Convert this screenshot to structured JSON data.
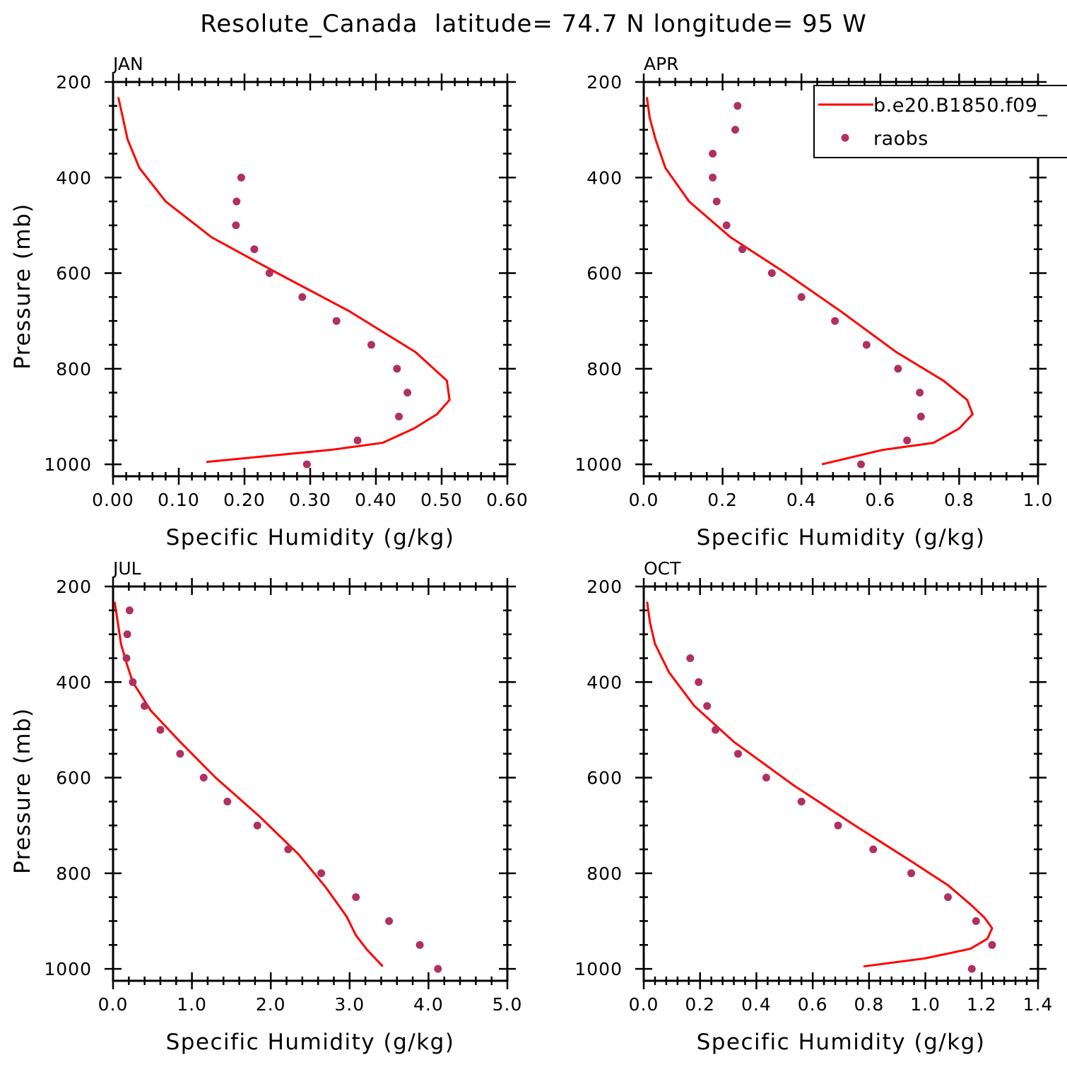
{
  "title": "Resolute_Canada  latitude= 74.7 N longitude= 95 W",
  "colors": {
    "model": "#ff0000",
    "obs": "#b03060"
  },
  "legend": {
    "placement": "top-right of APR panel, clipped at figure edge",
    "model_label": "b.e20.B1850.f09_",
    "obs_label": "raobs"
  },
  "chart_data": [
    {
      "type": "line",
      "panel": "JAN",
      "xlabel": "Specific Humidity (g/kg)",
      "ylabel": "Pressure (mb)",
      "xlim": [
        0,
        0.6
      ],
      "xticks": [
        0.0,
        0.1,
        0.2,
        0.3,
        0.4,
        0.5,
        0.6
      ],
      "xtick_labels": [
        "0.00",
        "0.10",
        "0.20",
        "0.30",
        "0.40",
        "0.50",
        "0.60"
      ],
      "ylim": [
        200,
        1025
      ],
      "y_inverted": true,
      "yticks": [
        200,
        400,
        600,
        800,
        1000
      ],
      "yminor": [
        250,
        300,
        350,
        450,
        500,
        550,
        650,
        700,
        750,
        850,
        900,
        950
      ],
      "xminor_per_major": 4,
      "series": [
        {
          "name": "b.e20.B1850.f09_",
          "style": "line",
          "x": [
            0.008,
            0.015,
            0.022,
            0.04,
            0.08,
            0.15,
            0.25,
            0.36,
            0.46,
            0.508,
            0.512,
            0.493,
            0.458,
            0.41,
            0.33,
            0.142
          ],
          "y": [
            232,
            275,
            320,
            380,
            450,
            525,
            600,
            680,
            765,
            825,
            865,
            895,
            925,
            955,
            970,
            995
          ]
        },
        {
          "name": "raobs",
          "style": "markers",
          "x": [
            0.195,
            0.188,
            0.187,
            0.215,
            0.238,
            0.288,
            0.34,
            0.393,
            0.432,
            0.448,
            0.435,
            0.372,
            0.295
          ],
          "y": [
            400,
            450,
            500,
            550,
            600,
            650,
            700,
            750,
            800,
            850,
            900,
            950,
            1000
          ]
        }
      ]
    },
    {
      "type": "line",
      "panel": "APR",
      "xlabel": "Specific Humidity (g/kg)",
      "ylabel": "",
      "xlim": [
        0,
        1.0
      ],
      "xticks": [
        0.0,
        0.2,
        0.4,
        0.6,
        0.8,
        1.0
      ],
      "xtick_labels": [
        "0.0",
        "0.2",
        "0.4",
        "0.6",
        "0.8",
        "1.0"
      ],
      "ylim": [
        200,
        1025
      ],
      "y_inverted": true,
      "yticks": [
        200,
        400,
        600,
        800,
        1000
      ],
      "yminor": [
        250,
        300,
        350,
        450,
        500,
        550,
        650,
        700,
        750,
        850,
        900,
        950
      ],
      "xminor_per_major": 4,
      "series": [
        {
          "name": "b.e20.B1850.f09_",
          "style": "line",
          "x": [
            0.008,
            0.015,
            0.03,
            0.055,
            0.115,
            0.22,
            0.36,
            0.5,
            0.64,
            0.76,
            0.82,
            0.834,
            0.8,
            0.735,
            0.605,
            0.452
          ],
          "y": [
            232,
            275,
            320,
            380,
            450,
            525,
            600,
            680,
            765,
            825,
            865,
            895,
            925,
            955,
            970,
            1000
          ]
        },
        {
          "name": "raobs",
          "style": "markers",
          "x": [
            0.238,
            0.232,
            0.175,
            0.175,
            0.185,
            0.21,
            0.25,
            0.325,
            0.4,
            0.485,
            0.565,
            0.645,
            0.7,
            0.703,
            0.668,
            0.551
          ],
          "y": [
            250,
            300,
            350,
            400,
            450,
            500,
            550,
            600,
            650,
            700,
            750,
            800,
            850,
            900,
            950,
            1000
          ]
        }
      ]
    },
    {
      "type": "line",
      "panel": "JUL",
      "xlabel": "Specific Humidity (g/kg)",
      "ylabel": "Pressure (mb)",
      "xlim": [
        0,
        5.0
      ],
      "xticks": [
        0.0,
        1.0,
        2.0,
        3.0,
        4.0,
        5.0
      ],
      "xtick_labels": [
        "0.0",
        "1.0",
        "2.0",
        "3.0",
        "4.0",
        "5.0"
      ],
      "ylim": [
        200,
        1025
      ],
      "y_inverted": true,
      "yticks": [
        200,
        400,
        600,
        800,
        1000
      ],
      "yminor": [
        250,
        300,
        350,
        450,
        500,
        550,
        650,
        700,
        750,
        850,
        900,
        950
      ],
      "xminor_per_major": 4,
      "series": [
        {
          "name": "b.e20.B1850.f09_",
          "style": "line",
          "x": [
            0.02,
            0.06,
            0.1,
            0.17,
            0.25,
            0.48,
            0.85,
            1.3,
            1.85,
            2.35,
            2.7,
            2.96,
            3.08,
            3.22,
            3.42
          ],
          "y": [
            232,
            275,
            320,
            360,
            400,
            460,
            525,
            600,
            680,
            760,
            830,
            890,
            930,
            960,
            995
          ]
        },
        {
          "name": "raobs",
          "style": "markers",
          "x": [
            0.21,
            0.18,
            0.17,
            0.25,
            0.4,
            0.6,
            0.85,
            1.15,
            1.45,
            1.83,
            2.22,
            2.64,
            3.08,
            3.5,
            3.89,
            4.12
          ],
          "y": [
            250,
            300,
            350,
            400,
            450,
            500,
            550,
            600,
            650,
            700,
            750,
            800,
            850,
            900,
            950,
            1000
          ]
        }
      ]
    },
    {
      "type": "line",
      "panel": "OCT",
      "xlabel": "Specific Humidity (g/kg)",
      "ylabel": "",
      "xlim": [
        0,
        1.4
      ],
      "xticks": [
        0.0,
        0.2,
        0.4,
        0.6,
        0.8,
        1.0,
        1.2,
        1.4
      ],
      "xtick_labels": [
        "0.0",
        "0.2",
        "0.4",
        "0.6",
        "0.8",
        "1.0",
        "1.2",
        "1.4"
      ],
      "ylim": [
        200,
        1025
      ],
      "y_inverted": true,
      "yticks": [
        200,
        400,
        600,
        800,
        1000
      ],
      "yminor": [
        250,
        300,
        350,
        450,
        500,
        550,
        650,
        700,
        750,
        850,
        900,
        950
      ],
      "xminor_per_major": 4,
      "series": [
        {
          "name": "b.e20.B1850.f09_",
          "style": "line",
          "x": [
            0.012,
            0.022,
            0.04,
            0.09,
            0.18,
            0.32,
            0.53,
            0.75,
            0.95,
            1.08,
            1.16,
            1.21,
            1.237,
            1.22,
            1.16,
            1.0,
            0.78
          ],
          "y": [
            232,
            275,
            320,
            380,
            450,
            525,
            615,
            700,
            775,
            825,
            865,
            893,
            915,
            937,
            958,
            978,
            995
          ]
        },
        {
          "name": "raobs",
          "style": "markers",
          "x": [
            0.165,
            0.195,
            0.225,
            0.255,
            0.335,
            0.435,
            0.56,
            0.69,
            0.815,
            0.95,
            1.08,
            1.18,
            1.237,
            1.165
          ],
          "y": [
            350,
            400,
            450,
            500,
            550,
            600,
            650,
            700,
            750,
            800,
            850,
            900,
            950,
            1000
          ]
        }
      ]
    }
  ]
}
